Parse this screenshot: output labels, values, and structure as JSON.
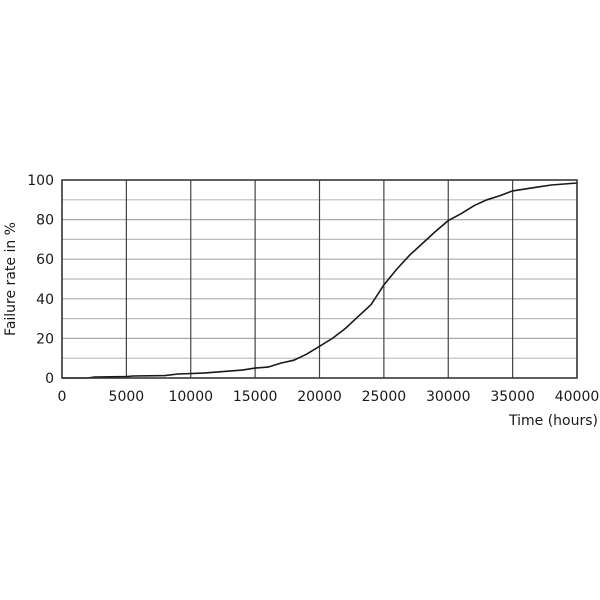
{
  "chart_data": {
    "type": "line",
    "title": "",
    "xlabel": "Time (hours)",
    "ylabel": "Failure rate in %",
    "xlim": [
      0,
      40000
    ],
    "ylim": [
      0,
      100
    ],
    "xticks": [
      0,
      5000,
      10000,
      15000,
      20000,
      25000,
      30000,
      35000,
      40000
    ],
    "yticks": [
      0,
      20,
      40,
      60,
      80,
      100
    ],
    "minor_y_grid": [
      10,
      30,
      50,
      70,
      90
    ],
    "grid": true,
    "line_color": "#1a1a1a",
    "series": [
      {
        "x": [
          0,
          2000,
          2500,
          5000,
          5500,
          8000,
          9000,
          11000,
          12000,
          14000,
          15000,
          16000,
          17000,
          18000,
          19000,
          20000,
          21000,
          22000,
          23000,
          24000,
          25000,
          26000,
          27000,
          28000,
          29000,
          30000,
          31000,
          32000,
          33000,
          34000,
          35000,
          36000,
          37000,
          38000,
          39000,
          40000
        ],
        "y": [
          0,
          0,
          0.5,
          0.7,
          1,
          1.2,
          2,
          2.5,
          3,
          4,
          5,
          5.5,
          7.5,
          9,
          12,
          16,
          20,
          25,
          31,
          37,
          47,
          55,
          62,
          68,
          74,
          79.5,
          83,
          87,
          90,
          92,
          94.5,
          95.5,
          96.5,
          97.5,
          98,
          98.5
        ]
      }
    ]
  }
}
